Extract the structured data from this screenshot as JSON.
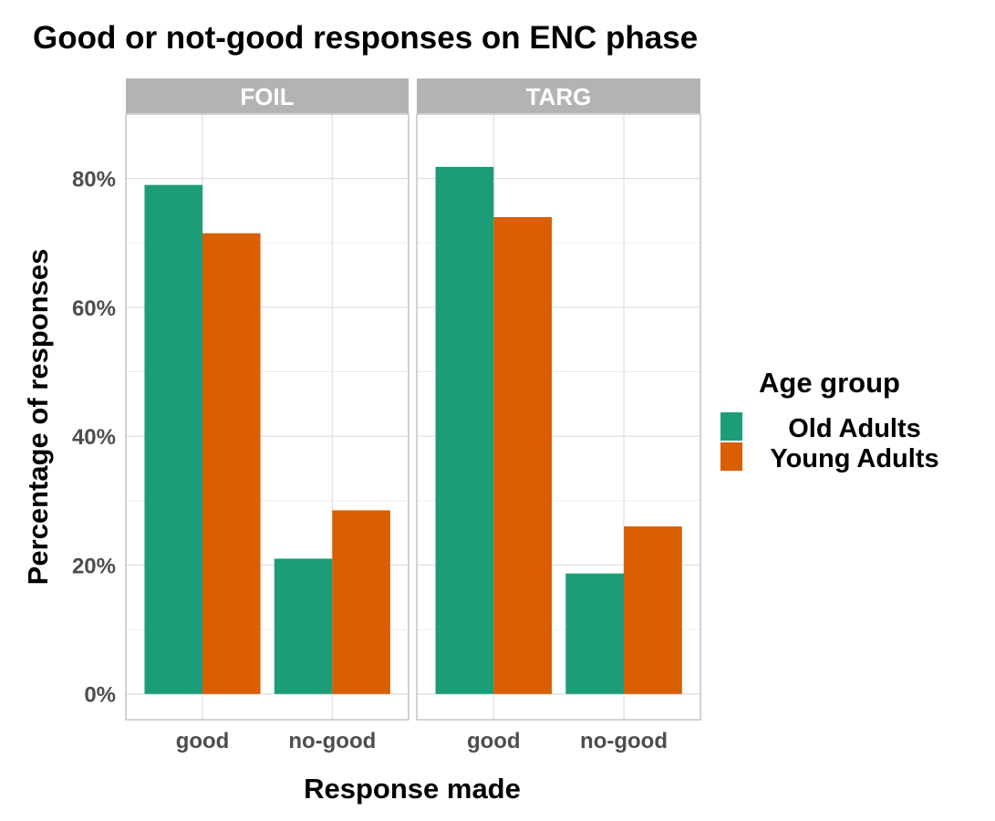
{
  "chart_data": {
    "type": "bar",
    "title": "Good or not-good responses on ENC phase",
    "xlabel": "Response made",
    "ylabel": "Percentage of responses",
    "ylim": [
      -0.04,
      0.9
    ],
    "yticks": [
      0,
      0.2,
      0.4,
      0.6,
      0.8
    ],
    "ytick_labels": [
      "0%",
      "20%",
      "40%",
      "60%",
      "80%"
    ],
    "categories": [
      "good",
      "no-good"
    ],
    "legend": {
      "title": "Age group",
      "position": "right"
    },
    "series_colors": [
      "#1b9e77",
      "#d95f02"
    ],
    "grid": true,
    "panels": [
      {
        "name": "FOIL",
        "series": [
          {
            "name": "Old Adults",
            "values": [
              0.79,
              0.21
            ]
          },
          {
            "name": "Young Adults",
            "values": [
              0.715,
              0.285
            ]
          }
        ]
      },
      {
        "name": "TARG",
        "series": [
          {
            "name": "Old Adults",
            "values": [
              0.818,
              0.187
            ]
          },
          {
            "name": "Young Adults",
            "values": [
              0.74,
              0.26
            ]
          }
        ]
      }
    ]
  }
}
